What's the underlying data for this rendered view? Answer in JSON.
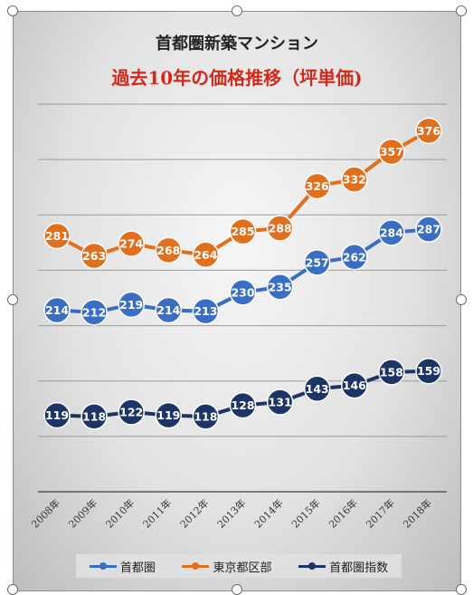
{
  "title": "首都圏新築マンション",
  "subtitle": "過去10年の価格推移（坪単価)",
  "chart_data": {
    "type": "line",
    "categories": [
      "2008年",
      "2009年",
      "2010年",
      "2011年",
      "2012年",
      "2013年",
      "2014年",
      "2015年",
      "2016年",
      "2017年",
      "2018年"
    ],
    "series": [
      {
        "name": "首都圏",
        "color": "#3a6ec3",
        "values": [
          214,
          212,
          219,
          214,
          213,
          230,
          235,
          257,
          262,
          284,
          287
        ]
      },
      {
        "name": "東京都区部",
        "color": "#e0701d",
        "values": [
          281,
          263,
          274,
          268,
          264,
          285,
          288,
          326,
          332,
          357,
          376
        ]
      },
      {
        "name": "首都圏指数",
        "color": "#1c3566",
        "values": [
          119,
          118,
          122,
          119,
          118,
          128,
          131,
          143,
          146,
          158,
          159
        ]
      }
    ],
    "ylim": [
      50,
      400
    ],
    "grid": true,
    "legend_position": "bottom"
  }
}
